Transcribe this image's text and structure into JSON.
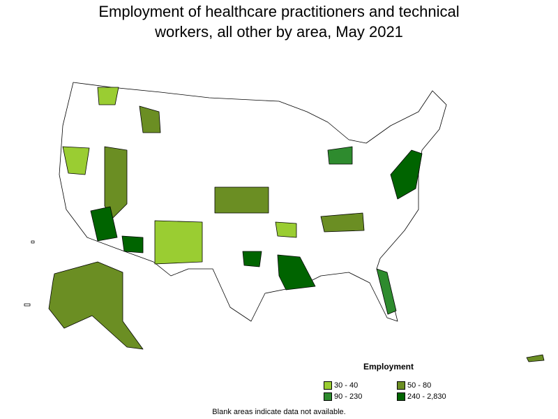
{
  "title": "Employment of healthcare practitioners and technical workers, all other by area, May 2021",
  "legend": {
    "title": "Employment",
    "items": [
      {
        "label": "30 - 40",
        "color": "#9acd32"
      },
      {
        "label": "50 - 80",
        "color": "#6b8e23"
      },
      {
        "label": "90 - 230",
        "color": "#2e8b2e"
      },
      {
        "label": "240 - 2,830",
        "color": "#006400"
      }
    ]
  },
  "note": "Blank areas indicate data not available."
}
